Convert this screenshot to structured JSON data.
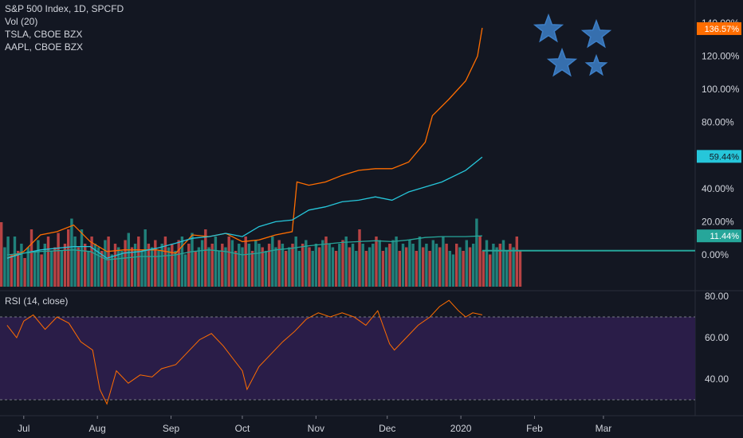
{
  "legend": {
    "main": "S&P 500 Index, 1D, SPCFD",
    "volume": "Vol (20)",
    "compare_1": "TSLA, CBOE BZX",
    "compare_2": "AAPL, CBOE BZX",
    "rsi": "RSI (14, close)"
  },
  "colors": {
    "background": "#131722",
    "tsla": "#ff6d00",
    "aapl": "#26c6da",
    "spx": "#26a69a",
    "volume_up": "#26a69a",
    "volume_down": "#ef5350",
    "rsi_line": "#ff6d00",
    "rsi_band": "#2a1d48",
    "stars": "#3d7fc7",
    "axis_text": "#d1d4dc"
  },
  "chart_data": [
    {
      "type": "line",
      "title": "S&P 500 Index, 1D, SPCFD",
      "percent_axis": {
        "ticks": [
          "0.00%",
          "20.00%",
          "40.00%",
          "60.00%",
          "80.00%",
          "100.00%",
          "120.00%",
          "140.00%"
        ],
        "range": [
          -20,
          140
        ]
      },
      "x_labels": [
        "Jul",
        "Aug",
        "Sep",
        "Oct",
        "Nov",
        "Dec",
        "2020",
        "Feb",
        "Mar"
      ],
      "price_labels": [
        {
          "series": "TSLA",
          "text": "136.57%",
          "value": 136.57
        },
        {
          "series": "AAPL",
          "text": "59.44%",
          "value": 59.44
        },
        {
          "series": "SPX",
          "text": "11.44%",
          "value": 11.44
        }
      ],
      "series": [
        {
          "name": "TSLA, CBOE BZX",
          "x": [
            "Jun 24",
            "Jul 1",
            "Jul 8",
            "Jul 15",
            "Jul 22",
            "Jul 29",
            "Aug 5",
            "Aug 12",
            "Aug 19",
            "Aug 26",
            "Sep 3",
            "Sep 10",
            "Sep 17",
            "Sep 24",
            "Oct 1",
            "Oct 8",
            "Oct 15",
            "Oct 22",
            "Oct 24",
            "Oct 29",
            "Nov 5",
            "Nov 12",
            "Nov 19",
            "Nov 26",
            "Dec 3",
            "Dec 10",
            "Dec 17",
            "Dec 20",
            "Dec 27",
            "Jan 3",
            "Jan 8",
            "Jan 10"
          ],
          "values": [
            -2,
            2,
            12,
            14,
            18,
            8,
            2,
            3,
            3,
            3,
            1,
            12,
            11,
            13,
            8,
            9,
            12,
            14,
            44,
            42,
            44,
            48,
            51,
            52,
            52,
            56,
            68,
            84,
            94,
            105,
            120,
            137
          ]
        },
        {
          "name": "AAPL, CBOE BZX",
          "x": [
            "Jun 24",
            "Jul 1",
            "Jul 8",
            "Jul 15",
            "Jul 22",
            "Jul 29",
            "Aug 5",
            "Aug 12",
            "Aug 19",
            "Aug 26",
            "Sep 3",
            "Sep 10",
            "Sep 17",
            "Sep 24",
            "Oct 1",
            "Oct 8",
            "Oct 15",
            "Oct 22",
            "Oct 29",
            "Nov 5",
            "Nov 12",
            "Nov 19",
            "Nov 26",
            "Dec 3",
            "Dec 10",
            "Dec 17",
            "Dec 24",
            "Jan 3",
            "Jan 10"
          ],
          "values": [
            -2,
            1,
            3,
            4,
            5,
            5,
            -2,
            1,
            2,
            4,
            7,
            10,
            11,
            13,
            11,
            17,
            20,
            21,
            27,
            29,
            32,
            33,
            35,
            33,
            38,
            41,
            44,
            51,
            59
          ]
        },
        {
          "name": "S&P 500 Index",
          "x": [
            "Jun 24",
            "Jul 1",
            "Jul 8",
            "Jul 15",
            "Jul 22",
            "Jul 29",
            "Aug 5",
            "Aug 12",
            "Aug 19",
            "Aug 26",
            "Sep 3",
            "Sep 10",
            "Sep 17",
            "Sep 24",
            "Oct 1",
            "Oct 8",
            "Oct 15",
            "Oct 22",
            "Oct 29",
            "Nov 5",
            "Nov 12",
            "Nov 19",
            "Nov 26",
            "Dec 3",
            "Dec 10",
            "Dec 17",
            "Dec 24",
            "Jan 3",
            "Jan 10"
          ],
          "values": [
            0,
            1,
            2,
            2.5,
            3,
            2,
            -3,
            -2,
            -1,
            -1,
            0,
            2,
            3,
            2,
            0,
            1,
            3,
            4,
            5.5,
            6.5,
            7.5,
            8,
            8.5,
            8,
            9,
            10.5,
            11,
            11,
            11.44
          ]
        }
      ]
    },
    {
      "type": "line",
      "title": "RSI (14, close)",
      "y_ticks": [
        "40.00",
        "60.00",
        "80.00"
      ],
      "ylim": [
        24,
        84
      ],
      "bands": [
        30,
        70
      ],
      "series": [
        {
          "name": "RSI (14, close)",
          "x": [
            "Jun 24",
            "Jun 28",
            "Jul 1",
            "Jul 5",
            "Jul 10",
            "Jul 15",
            "Jul 20",
            "Jul 25",
            "Jul 30",
            "Aug 2",
            "Aug 5",
            "Aug 9",
            "Aug 14",
            "Aug 19",
            "Aug 24",
            "Aug 28",
            "Sep 3",
            "Sep 8",
            "Sep 13",
            "Sep 18",
            "Sep 23",
            "Sep 27",
            "Oct 1",
            "Oct 3",
            "Oct 8",
            "Oct 13",
            "Oct 18",
            "Oct 23",
            "Oct 28",
            "Nov 2",
            "Nov 7",
            "Nov 12",
            "Nov 17",
            "Nov 22",
            "Nov 27",
            "Dec 2",
            "Dec 4",
            "Dec 9",
            "Dec 14",
            "Dec 19",
            "Dec 23",
            "Dec 27",
            "Dec 31",
            "Jan 3",
            "Jan 6",
            "Jan 10"
          ],
          "values": [
            66,
            60,
            68,
            71,
            64,
            70,
            67,
            58,
            54,
            35,
            28,
            44,
            38,
            42,
            41,
            45,
            47,
            53,
            59,
            62,
            56,
            50,
            44,
            35,
            46,
            52,
            58,
            63,
            69,
            72,
            70,
            72,
            70,
            66,
            73,
            57,
            54,
            60,
            66,
            70,
            75,
            78,
            73,
            70,
            72,
            71
          ]
        }
      ]
    },
    {
      "type": "bar",
      "title": "Vol (20)",
      "note": "relative daily volume, 0-1 scale",
      "values": [
        0.9,
        0.55,
        0.7,
        0.45,
        0.7,
        0.5,
        0.6,
        0.4,
        0.55,
        0.8,
        0.5,
        0.65,
        0.45,
        0.6,
        0.7,
        0.5,
        0.55,
        0.75,
        0.5,
        0.6,
        0.8,
        0.95,
        0.7,
        0.55,
        0.8,
        0.6,
        0.5,
        0.7,
        0.6,
        0.55,
        0.5,
        0.65,
        0.7,
        0.45,
        0.6,
        0.55,
        0.5,
        0.65,
        0.75,
        0.55,
        0.6,
        0.7,
        0.5,
        0.8,
        0.6,
        0.55,
        0.65,
        0.5,
        0.6,
        0.7,
        0.55,
        0.6,
        0.5,
        0.65,
        0.7,
        0.45,
        0.6,
        0.75,
        0.5,
        0.55,
        0.65,
        0.8,
        0.55,
        0.6,
        0.7,
        0.5,
        0.6,
        0.55,
        0.7,
        0.65,
        0.5,
        0.6,
        0.55,
        0.7,
        0.6,
        0.5,
        0.65,
        0.6,
        0.55,
        0.5,
        0.6,
        0.7,
        0.55,
        0.65,
        0.6,
        0.5,
        0.55,
        0.6,
        0.7,
        0.5,
        0.6,
        0.65,
        0.55,
        0.5,
        0.6,
        0.55,
        0.65,
        0.7,
        0.6,
        0.55,
        0.5,
        0.6,
        0.65,
        0.7,
        0.55,
        0.6,
        0.5,
        0.8,
        0.6,
        0.5,
        0.55,
        0.6,
        0.7,
        0.65,
        0.5,
        0.55,
        0.6,
        0.65,
        0.7,
        0.5,
        0.6,
        0.55,
        0.65,
        0.6,
        0.5,
        0.7,
        0.55,
        0.6,
        0.5,
        0.65,
        0.6,
        0.55,
        0.7,
        0.6,
        0.5,
        0.45,
        0.6,
        0.55,
        0.5,
        0.65,
        0.55,
        0.6,
        0.95,
        0.7,
        0.5,
        0.65,
        0.45,
        0.6,
        0.55,
        0.6,
        0.65,
        0.5,
        0.6,
        0.55,
        0.7,
        0.5
      ],
      "up": [
        0,
        1,
        1,
        0,
        1,
        0,
        1,
        0,
        1,
        0,
        1,
        1,
        0,
        1,
        0,
        1,
        0,
        0,
        1,
        0,
        0,
        1,
        1,
        0,
        1,
        0,
        1,
        0,
        1,
        1,
        0,
        1,
        0,
        1,
        0,
        1,
        1,
        0,
        1,
        0,
        1,
        0,
        1,
        1,
        0,
        1,
        0,
        1,
        1,
        0,
        1,
        0,
        1,
        0,
        1,
        1,
        0,
        1,
        0,
        1,
        1,
        0,
        1,
        0,
        1,
        1,
        0,
        1,
        0,
        1,
        0,
        1,
        1,
        0,
        1,
        0,
        1,
        1,
        0,
        1,
        0,
        1,
        1,
        0,
        1,
        0,
        1,
        0,
        1,
        1,
        0,
        1,
        0,
        1,
        1,
        0,
        1,
        0,
        1,
        1,
        0,
        1,
        0,
        1,
        0,
        1,
        1,
        0,
        1,
        0,
        1,
        1,
        0,
        1,
        0,
        1,
        0,
        1,
        1,
        0,
        1,
        0,
        1,
        1,
        0,
        1,
        0,
        1,
        0,
        1,
        1,
        0,
        1,
        0,
        1,
        1,
        0,
        1,
        0,
        1,
        0,
        1,
        1,
        0,
        0,
        1,
        0,
        1,
        1,
        0,
        1,
        1,
        0,
        1
      ]
    }
  ]
}
